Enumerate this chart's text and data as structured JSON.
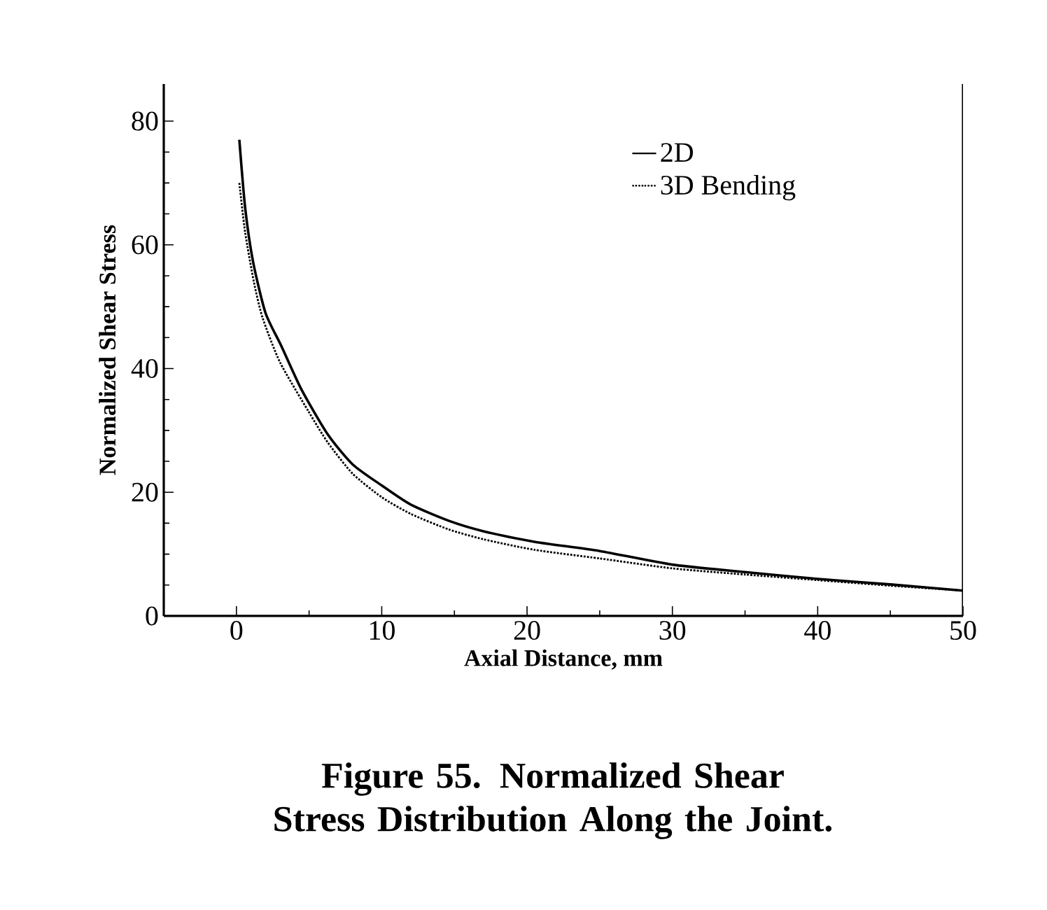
{
  "chart_data": {
    "type": "line",
    "title": "Figure 55.  Normalized Shear Stress Distribution Along the Joint.",
    "xlabel": "Axial Distance, mm",
    "ylabel": "Normalized Shear Stress",
    "xlim": [
      -5,
      50
    ],
    "ylim": [
      0,
      86
    ],
    "xticks": [
      0,
      10,
      20,
      30,
      40,
      50
    ],
    "yticks": [
      0,
      20,
      40,
      60,
      80
    ],
    "grid": false,
    "legend": "top right",
    "marker": "none",
    "series": [
      {
        "name": "2D",
        "color": "#000000",
        "line_style": "solid",
        "x": [
          0.2,
          0.6,
          1.15,
          2,
          3.1,
          4.5,
          6.3,
          8,
          10,
          12,
          14.6,
          17,
          20.5,
          25,
          30,
          35,
          40,
          45,
          50
        ],
        "values": [
          77,
          66,
          57.2,
          49,
          43.6,
          36.5,
          29.3,
          24.5,
          21.1,
          18,
          15.4,
          13.7,
          12.0,
          10.5,
          8.3,
          7.1,
          6.0,
          5.1,
          4.1
        ]
      },
      {
        "name": "3D Bending",
        "color": "#000000",
        "line_style": "dotted",
        "x": [
          0.2,
          0.6,
          1.2,
          1.8,
          3,
          4.95,
          6.3,
          8,
          10,
          12,
          14.6,
          17,
          20.5,
          25,
          30,
          35,
          40,
          45,
          50
        ],
        "values": [
          70,
          62,
          54,
          48.2,
          41,
          33.1,
          28,
          23,
          19.2,
          16.5,
          14,
          12.4,
          10.7,
          9.3,
          7.7,
          6.7,
          5.8,
          4.9,
          4.1
        ]
      }
    ]
  }
}
